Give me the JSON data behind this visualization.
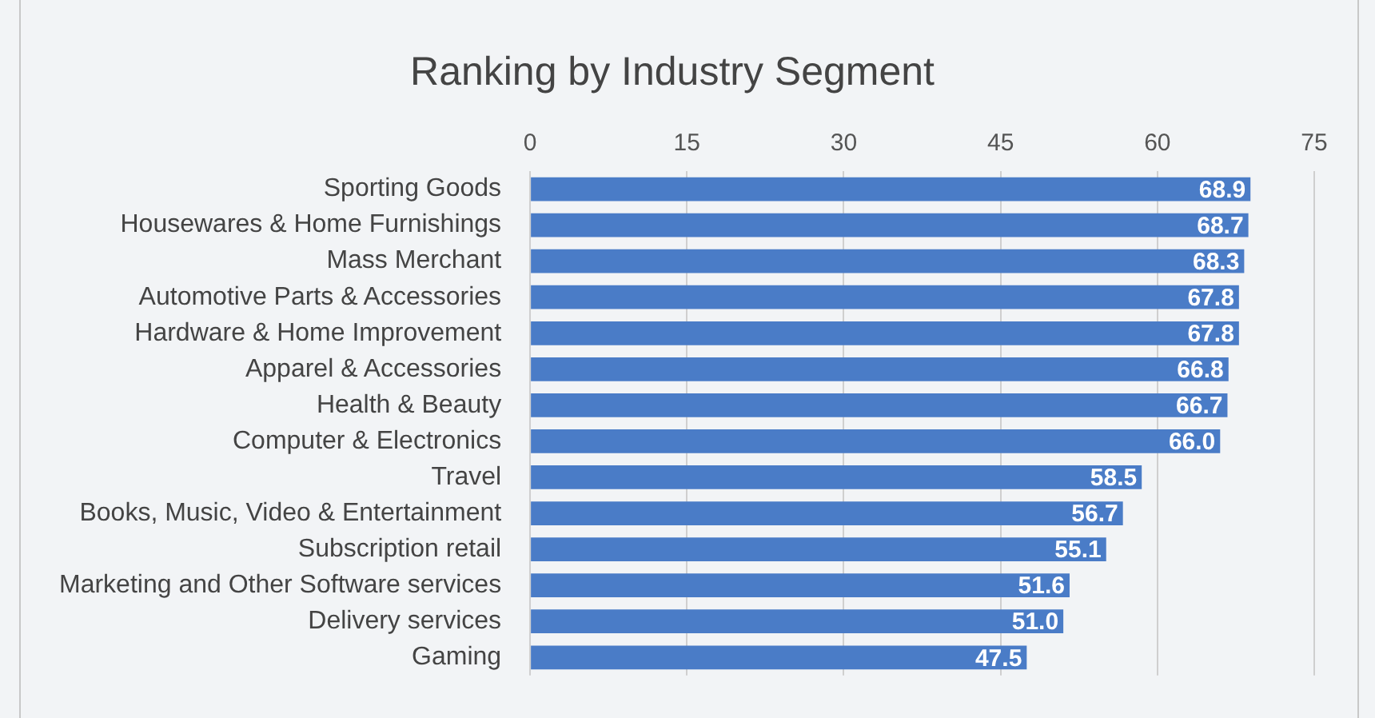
{
  "chart_data": {
    "type": "bar",
    "orientation": "horizontal",
    "title": "Ranking by Industry Segment",
    "categories": [
      "Sporting Goods",
      "Housewares & Home Furnishings",
      "Mass Merchant",
      "Automotive Parts & Accessories",
      "Hardware & Home Improvement",
      "Apparel & Accessories",
      "Health & Beauty",
      "Computer & Electronics",
      "Travel",
      "Books, Music, Video & Entertainment",
      "Subscription retail",
      "Marketing and Other Software services",
      "Delivery services",
      "Gaming"
    ],
    "values": [
      68.9,
      68.7,
      68.3,
      67.8,
      67.8,
      66.8,
      66.7,
      66.0,
      58.5,
      56.7,
      55.1,
      51.6,
      51.0,
      47.5
    ],
    "value_labels": [
      "68.9",
      "68.7",
      "68.3",
      "67.8",
      "67.8",
      "66.8",
      "66.7",
      "66.0",
      "58.5",
      "56.7",
      "55.1",
      "51.6",
      "51.0",
      "47.5"
    ],
    "color": "#4a7cc7",
    "xlim": [
      0,
      75
    ],
    "xticks": [
      0,
      15,
      30,
      45,
      60,
      75
    ],
    "grid": "x",
    "legend": false
  }
}
